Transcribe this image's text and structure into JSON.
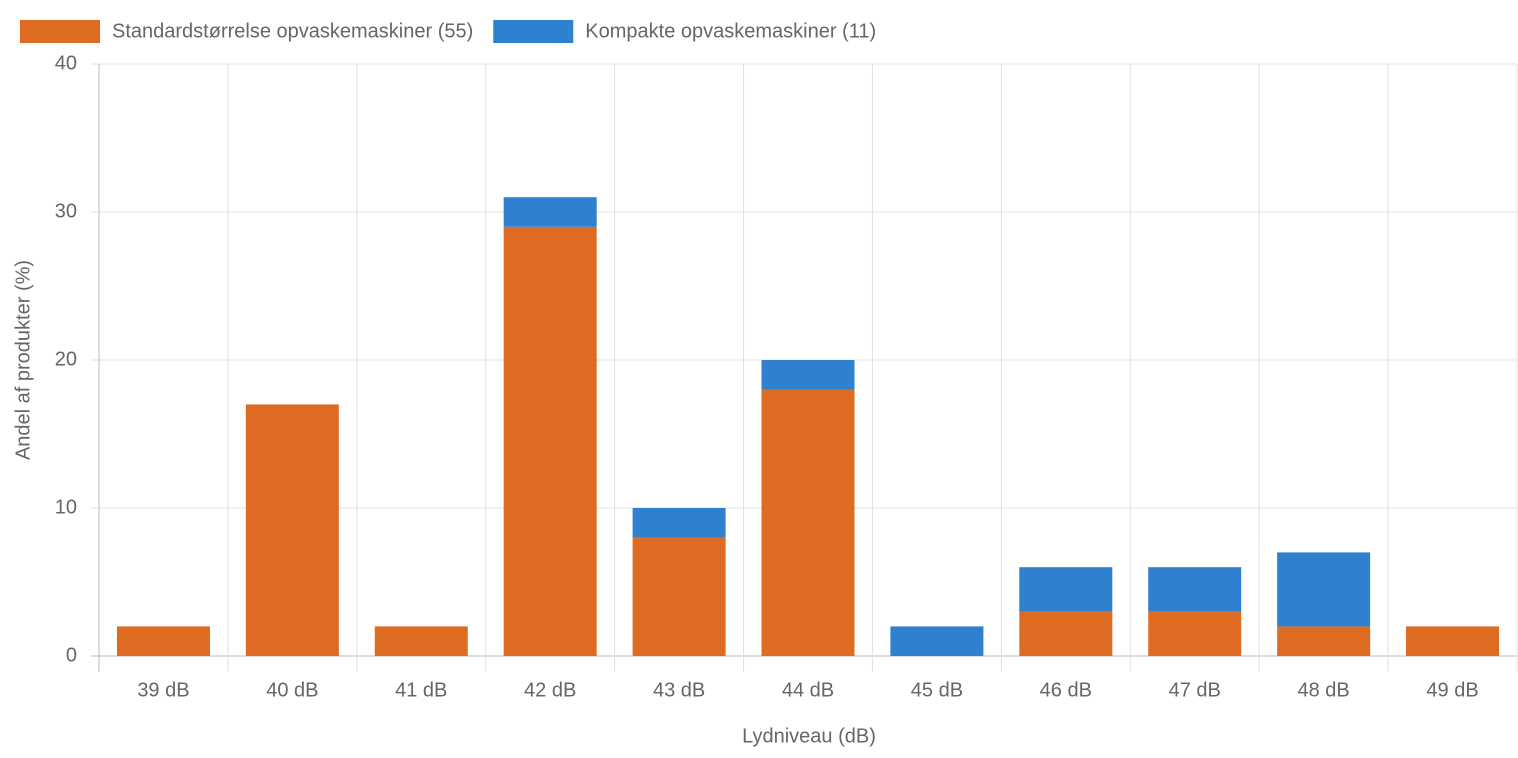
{
  "chart_data": {
    "type": "bar",
    "stacked": true,
    "x_label": "Lydniveau (dB)",
    "y_label": "Andel af produkter (%)",
    "categories": [
      "39 dB",
      "40 dB",
      "41 dB",
      "42 dB",
      "43 dB",
      "44 dB",
      "45 dB",
      "46 dB",
      "47 dB",
      "48 dB",
      "49 dB"
    ],
    "series": [
      {
        "name": "Standardstørrelse opvaskemaskiner (55)",
        "color": "#de6b22",
        "values": [
          2,
          17,
          2,
          29,
          8,
          18,
          0,
          3,
          3,
          2,
          2
        ]
      },
      {
        "name": "Kompakte opvaskemaskiner (11)",
        "color": "#2f80cf",
        "values": [
          0,
          0,
          0,
          2,
          2,
          2,
          2,
          3,
          3,
          5,
          0
        ]
      }
    ],
    "ylim": [
      0,
      40
    ],
    "yticks": [
      0,
      10,
      20,
      30,
      40
    ],
    "grid": true,
    "legend": "top"
  }
}
